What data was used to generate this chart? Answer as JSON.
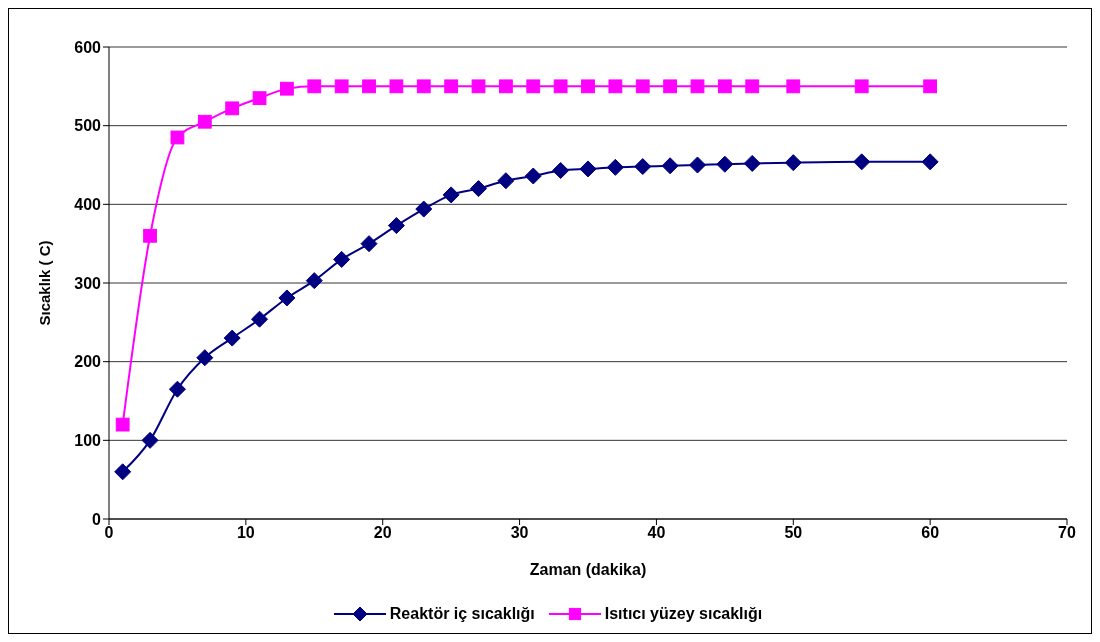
{
  "chart_data": {
    "type": "line",
    "xlabel": "Zaman (dakika)",
    "ylabel": "Sıcaklık ( C)",
    "x": [
      1,
      3,
      5,
      7,
      9,
      11,
      13,
      15,
      17,
      19,
      21,
      23,
      25,
      27,
      29,
      31,
      33,
      35,
      37,
      39,
      41,
      43,
      45,
      47,
      50,
      55,
      60
    ],
    "series": [
      {
        "name": "Reaktör iç sıcaklığı",
        "color": "#000080",
        "marker": "diamond",
        "values": [
          60,
          100,
          165,
          205,
          230,
          254,
          281,
          303,
          330,
          350,
          373,
          394,
          412,
          420,
          430,
          436,
          443,
          445,
          447,
          448,
          449,
          450,
          451,
          452,
          453,
          454,
          454
        ]
      },
      {
        "name": "Isıtıcı yüzey sıcaklığı",
        "color": "#ff00ff",
        "marker": "square",
        "values": [
          120,
          360,
          485,
          505,
          522,
          535,
          547,
          550,
          550,
          550,
          550,
          550,
          550,
          550,
          550,
          550,
          550,
          550,
          550,
          550,
          550,
          550,
          550,
          550,
          550,
          550,
          550
        ]
      }
    ],
    "xlim": [
      0,
      70
    ],
    "xticks": [
      0,
      10,
      20,
      30,
      40,
      50,
      60,
      70
    ],
    "ylim": [
      0,
      600
    ],
    "yticks": [
      0,
      100,
      200,
      300,
      400,
      500,
      600
    ],
    "grid": "y",
    "legend": "bottom",
    "line_style": "solid"
  }
}
